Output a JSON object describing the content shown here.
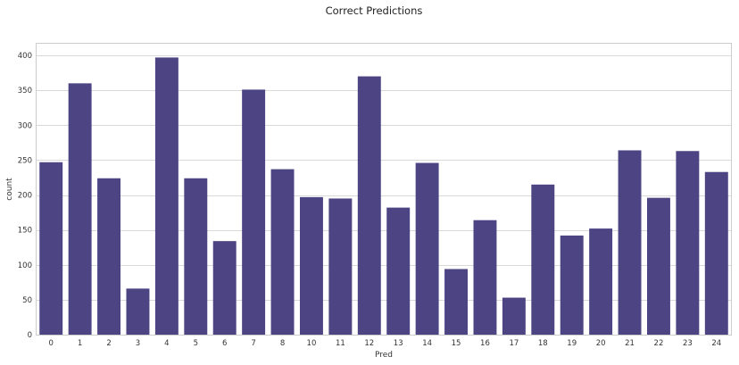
{
  "chart_data": {
    "type": "bar",
    "title": "Correct Predictions",
    "xlabel": "Pred",
    "ylabel": "count",
    "categories": [
      "0",
      "1",
      "2",
      "3",
      "4",
      "5",
      "6",
      "7",
      "8",
      "10",
      "11",
      "12",
      "13",
      "14",
      "15",
      "16",
      "17",
      "18",
      "19",
      "20",
      "21",
      "22",
      "23",
      "24"
    ],
    "values": [
      247,
      360,
      224,
      66,
      397,
      224,
      134,
      351,
      237,
      197,
      195,
      370,
      182,
      246,
      94,
      164,
      53,
      215,
      142,
      152,
      264,
      196,
      263,
      233
    ],
    "ylim": [
      0,
      418
    ],
    "yticks": [
      0,
      50,
      100,
      150,
      200,
      250,
      300,
      350,
      400
    ],
    "grid": true,
    "bar_color": "#4c4483"
  }
}
